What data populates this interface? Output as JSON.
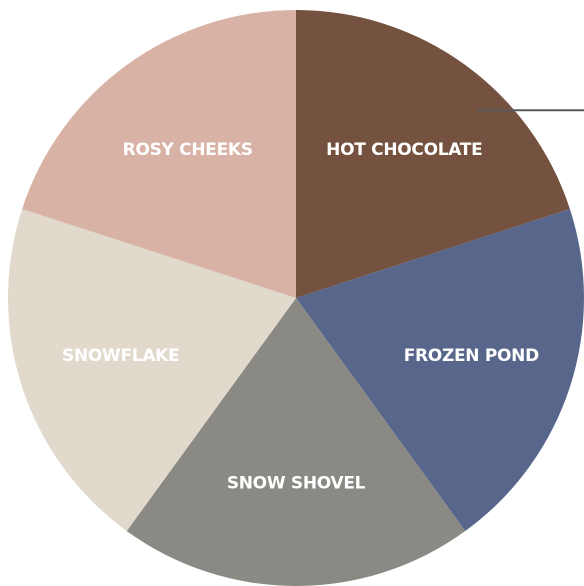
{
  "chart_data": {
    "type": "pie",
    "title": "",
    "slices": [
      {
        "label": "HOT CHOCOLATE",
        "value": 20,
        "color": "#74523f"
      },
      {
        "label": "FROZEN POND",
        "value": 20,
        "color": "#57668a"
      },
      {
        "label": "SNOW SHOVEL",
        "value": 20,
        "color": "#8a8983"
      },
      {
        "label": "SNOWFLAKE",
        "value": 20,
        "color": "#e1d9cc"
      },
      {
        "label": "ROSY CHEEKS",
        "value": 20,
        "color": "#d9b2a6"
      }
    ],
    "start_angle_deg": 0,
    "direction": "clockwise",
    "labels_inside": true,
    "legend": "none",
    "callout_slice": "HOT CHOCOLATE"
  }
}
